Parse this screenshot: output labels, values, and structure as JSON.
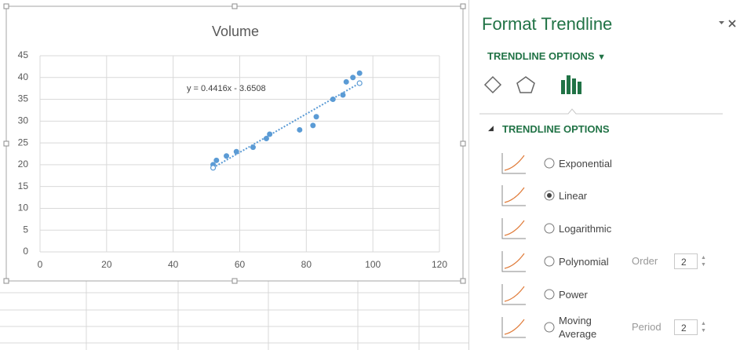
{
  "chart_data": {
    "type": "scatter",
    "title": "Volume",
    "series": [
      {
        "color": "#5b9bd5",
        "x": [
          52,
          53,
          56,
          59,
          64,
          68,
          69,
          78,
          82,
          83,
          88,
          91,
          92,
          94,
          96
        ],
        "values": [
          20,
          21,
          22,
          23,
          24,
          26,
          27,
          28,
          29,
          31,
          35,
          36,
          39,
          40,
          41
        ]
      }
    ],
    "trendline": {
      "label": "y = 0.4416x - 3.6508",
      "color": "#5b9bd5",
      "x": [
        52,
        96
      ],
      "values": [
        19.3,
        38.7
      ]
    },
    "xlim": [
      0,
      120
    ],
    "xticks": [
      0,
      20,
      40,
      60,
      80,
      100,
      120
    ],
    "ylim": [
      0,
      45
    ],
    "yticks": [
      0,
      5,
      10,
      15,
      20,
      25,
      30,
      35,
      40,
      45
    ],
    "grid": true
  },
  "pane": {
    "title": "Format Trendline",
    "tab": "TRENDLINE OPTIONS",
    "section": "TRENDLINE OPTIONS",
    "options": [
      {
        "label": "Exponential",
        "selected": false
      },
      {
        "label": "Linear",
        "selected": true
      },
      {
        "label": "Logarithmic",
        "selected": false
      },
      {
        "label": "Polynomial",
        "selected": false,
        "param": "Order",
        "param_value": 2
      },
      {
        "label": "Power",
        "selected": false
      },
      {
        "label": "Moving Average",
        "selected": false,
        "param": "Period",
        "param_value": 2
      }
    ]
  }
}
